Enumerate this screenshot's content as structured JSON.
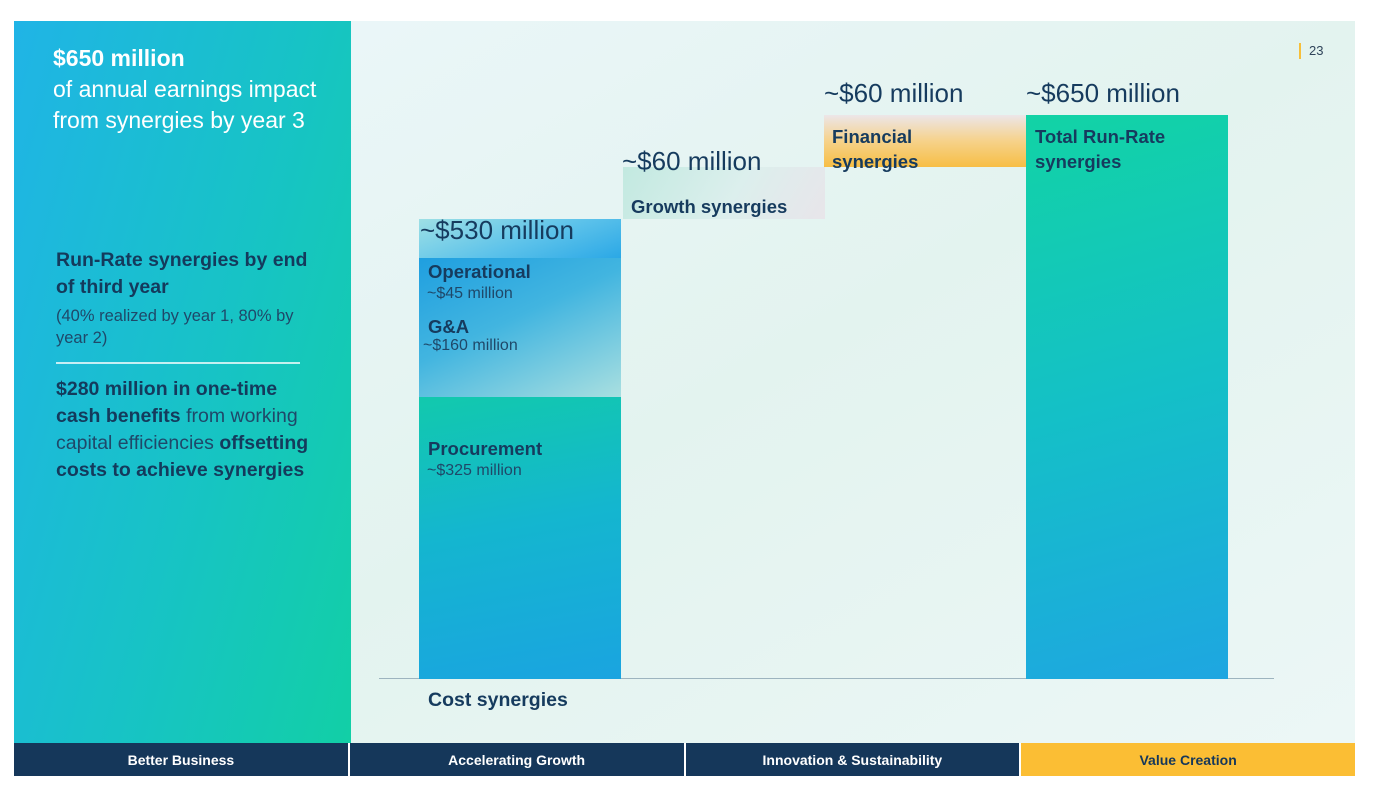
{
  "page_number": "23",
  "sidebar": {
    "headline_bold": "$650 million",
    "headline_rest": "of annual earnings impact from synergies by year 3",
    "runrate_title": "Run-Rate synergies by end of third year",
    "runrate_sub": "(40% realized by year 1, 80% by year 2)",
    "cash_bold": "$280 million in one-time cash benefits",
    "cash_mid": "from working capital efficiencies",
    "cash_end": "offsetting costs to achieve synergies"
  },
  "chart_data": {
    "type": "waterfall",
    "unit": "$ million",
    "ylim": [
      0,
      650
    ],
    "x_label": "Cost synergies",
    "stacked_bar": {
      "total_label": "~$530 million",
      "segments": [
        {
          "name": "Procurement",
          "value_label": "~$325 million",
          "value": 325,
          "color": "#12b9d8"
        },
        {
          "name": "G&A",
          "value_label": "~$160 million",
          "value": 160,
          "color": "#22a8e0"
        },
        {
          "name": "Operational",
          "value_label": "~$45 million",
          "value": 45,
          "color": "#5bc5ea"
        }
      ]
    },
    "increments": [
      {
        "name": "Growth synergies",
        "total_label": "~$60 million",
        "value": 60,
        "color": "#d7ede9"
      },
      {
        "name": "Financial synergies",
        "total_label": "~$60 million",
        "value": 60,
        "color": "#f8c85a"
      }
    ],
    "total": {
      "name": "Total Run-Rate synergies",
      "total_label": "~$650 million",
      "value": 650,
      "color": "#14c3b0"
    }
  },
  "footer": {
    "tabs": [
      {
        "label": "Better Business",
        "active": false
      },
      {
        "label": "Accelerating Growth",
        "active": false
      },
      {
        "label": "Innovation & Sustainability",
        "active": false
      },
      {
        "label": "Value Creation",
        "active": true
      }
    ]
  }
}
